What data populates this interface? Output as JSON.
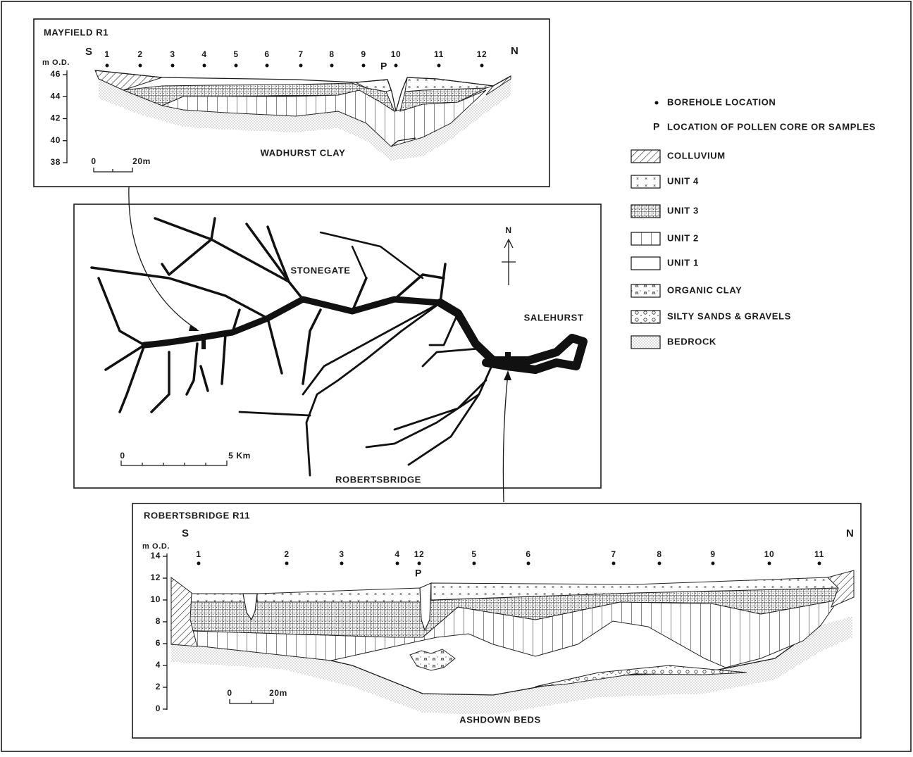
{
  "mayfield": {
    "title": "MAYFIELD  R1",
    "axis_label": "m O.D.",
    "south": "S",
    "north": "N",
    "yticks": [
      46,
      44,
      42,
      40,
      38
    ],
    "boreholes": [
      "1",
      "2",
      "3",
      "4",
      "5",
      "6",
      "7",
      "8",
      "9",
      "10",
      "11",
      "12"
    ],
    "pollen": "P",
    "bedrock": "WADHURST CLAY",
    "scale": [
      "0",
      "20m"
    ]
  },
  "map": {
    "places": [
      "STONEGATE",
      "SALEHURST",
      "ROBERTSBRIDGE"
    ],
    "north": "N",
    "scale": [
      "0",
      "5 Km"
    ]
  },
  "robertsbridge": {
    "title": "ROBERTSBRIDGE  R11",
    "axis_label": "m O.D.",
    "south": "S",
    "north": "N",
    "yticks": [
      14,
      12,
      10,
      8,
      6,
      4,
      2,
      0
    ],
    "boreholes": [
      "1",
      "2",
      "3",
      "4",
      "12",
      "5",
      "6",
      "7",
      "8",
      "9",
      "10",
      "11"
    ],
    "pollen": "P",
    "bedrock": "ASHDOWN BEDS",
    "scale": [
      "0",
      "20m"
    ]
  },
  "legend": {
    "borehole": "BOREHOLE LOCATION",
    "pollen_symbol": "P",
    "pollen": "LOCATION OF POLLEN CORE OR SAMPLES",
    "units": [
      "COLLUVIUM",
      "UNIT 4",
      "UNIT 3",
      "UNIT 2",
      "UNIT 1",
      "ORGANIC CLAY",
      "SILTY SANDS & GRAVELS",
      "BEDROCK"
    ]
  }
}
